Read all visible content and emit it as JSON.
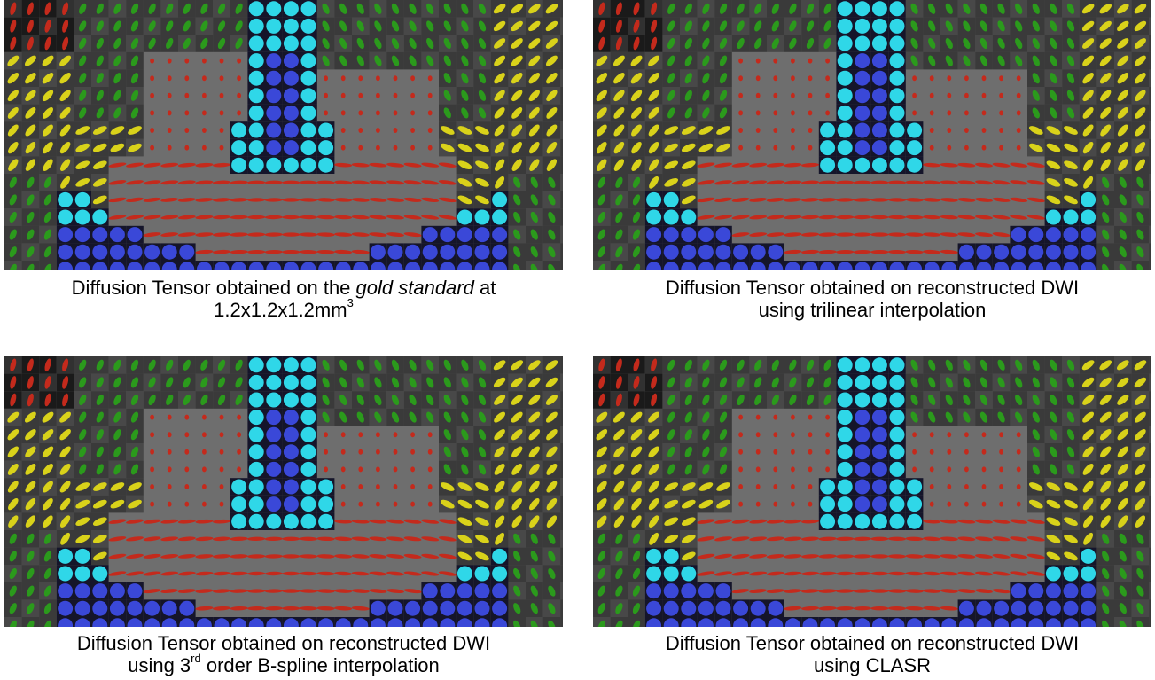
{
  "figures": [
    {
      "caption_line1_pre": "Diffusion Tensor obtained on the ",
      "caption_line1_em": "gold standard",
      "caption_line1_post": " at",
      "caption_line2_base": "1.2x1.2x1.2mm",
      "caption_line2_sup": "3",
      "caption_line2_tail": ""
    },
    {
      "caption_line1": "Diffusion Tensor obtained on reconstructed DWI",
      "caption_line2": "using trilinear interpolation"
    },
    {
      "caption_line1": "Diffusion Tensor obtained on reconstructed DWI",
      "caption_line2_base": "using 3",
      "caption_line2_sup": "rd",
      "caption_line2_tail": " order B-spline interpolation"
    },
    {
      "caption_line1": "Diffusion Tensor obtained on reconstructed DWI",
      "caption_line2": "using CLASR"
    }
  ],
  "colors": {
    "background_gray": "#6e6e6e",
    "dark_cell": "#111111",
    "red": "#c42a1c",
    "yellow": "#d9d21a",
    "green": "#2b9a1c",
    "cyan": "#2fd7e8",
    "blue": "#3a48d8"
  }
}
